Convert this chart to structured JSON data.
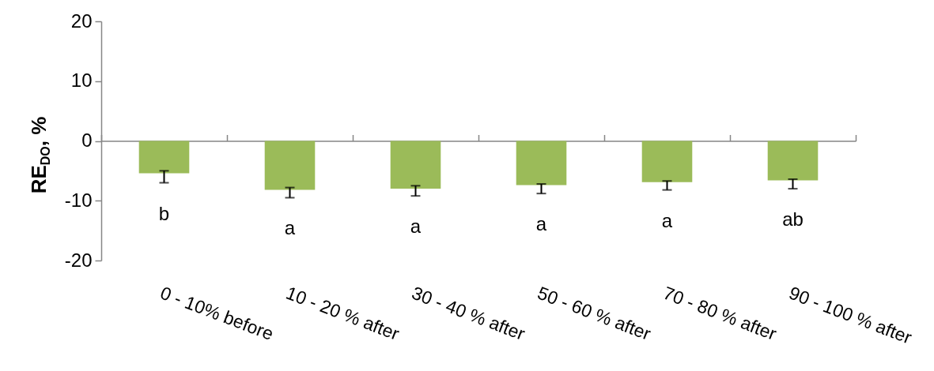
{
  "chart_data": {
    "type": "bar",
    "ylabel": "RE$_{DO}$, %",
    "categories": [
      "0 - 10% before",
      "10 - 20 % after",
      "30 - 40 % after",
      "50 - 60 % after",
      "70 - 80 % after",
      "90 - 100 % after"
    ],
    "values": [
      -5.4,
      -8.2,
      -8.0,
      -7.4,
      -6.9,
      -6.6
    ],
    "color": "#9bbb59",
    "errors": [
      [
        -7.0,
        -5.0
      ],
      [
        -9.5,
        -7.8
      ],
      [
        -9.2,
        -7.5
      ],
      [
        -8.8,
        -7.2
      ],
      [
        -8.2,
        -6.7
      ],
      [
        -8.0,
        -6.4
      ]
    ],
    "ylim": [
      -20,
      20
    ],
    "yticks": [
      -20,
      -10,
      0,
      10,
      20
    ],
    "annotations": [
      "b",
      "a",
      "a",
      "a",
      "a",
      "ab"
    ]
  }
}
